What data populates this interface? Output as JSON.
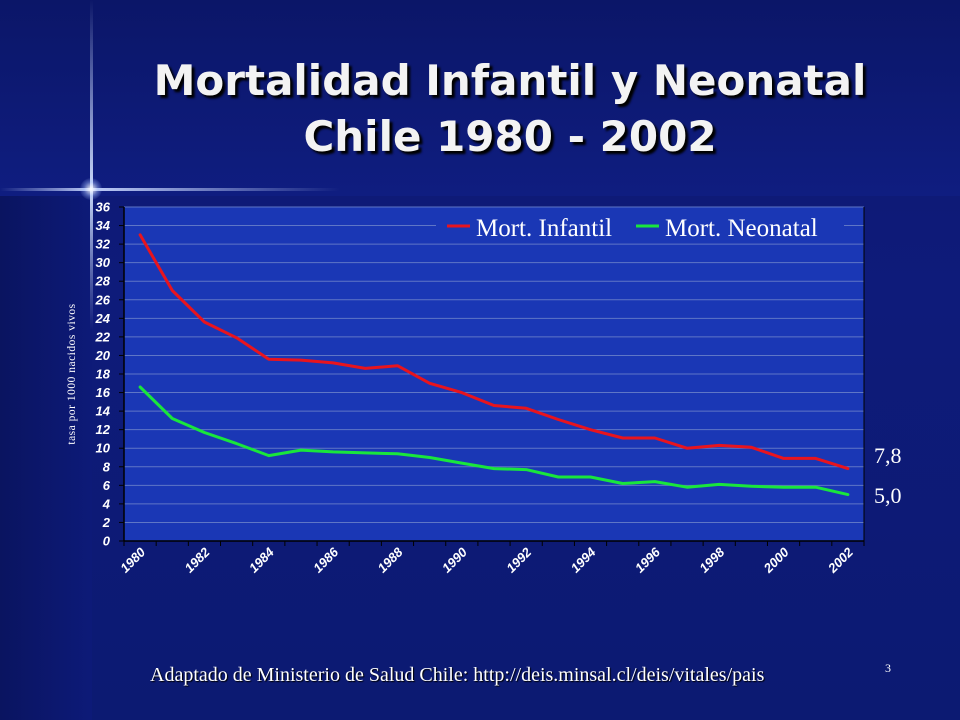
{
  "title_lines": [
    "Mortalidad Infantil y Neonatal",
    "Chile  1980 - 2002"
  ],
  "source": "Adaptado de Ministerio de Salud Chile:  http://deis.minsal.cl/deis/vitales/pais",
  "page_number": "3",
  "colors": {
    "infantil": "#e8141e",
    "neonatal": "#19e63c",
    "plot_background": "#1a37b5",
    "text": "#ffffff"
  },
  "chart_data": {
    "type": "line",
    "title": "",
    "xlabel": "",
    "ylabel": "tasa por 1000 nacidos vivos",
    "ylim": [
      0,
      36
    ],
    "yticks": [
      "0",
      "2",
      "4",
      "6",
      "8",
      "10",
      "12",
      "14",
      "16",
      "18",
      "20",
      "22",
      "24",
      "26",
      "28",
      "30",
      "32",
      "34",
      "36"
    ],
    "xtick_labels": [
      "1980",
      "1982",
      "1984",
      "1986",
      "1988",
      "1990",
      "1992",
      "1994",
      "1996",
      "1998",
      "2000",
      "2002"
    ],
    "legend": "top-right",
    "grid": true,
    "x": [
      1980,
      1981,
      1982,
      1983,
      1984,
      1985,
      1986,
      1987,
      1988,
      1989,
      1990,
      1991,
      1992,
      1993,
      1994,
      1995,
      1996,
      1997,
      1998,
      1999,
      2000,
      2001,
      2002
    ],
    "series": [
      {
        "name": "Mort. Infantil",
        "values": [
          33.0,
          27.0,
          23.6,
          21.9,
          19.6,
          19.5,
          19.2,
          18.6,
          18.9,
          17.0,
          16.0,
          14.6,
          14.3,
          13.1,
          12.0,
          11.1,
          11.1,
          10.0,
          10.3,
          10.1,
          8.9,
          8.9,
          7.8
        ]
      },
      {
        "name": "Mort. Neonatal",
        "values": [
          16.6,
          13.2,
          11.7,
          10.5,
          9.2,
          9.8,
          9.6,
          9.5,
          9.4,
          9.0,
          8.4,
          7.8,
          7.7,
          6.9,
          6.9,
          6.2,
          6.4,
          5.8,
          6.1,
          5.9,
          5.8,
          5.8,
          5.0
        ]
      }
    ],
    "end_labels": [
      "7,8",
      "5,0"
    ]
  }
}
